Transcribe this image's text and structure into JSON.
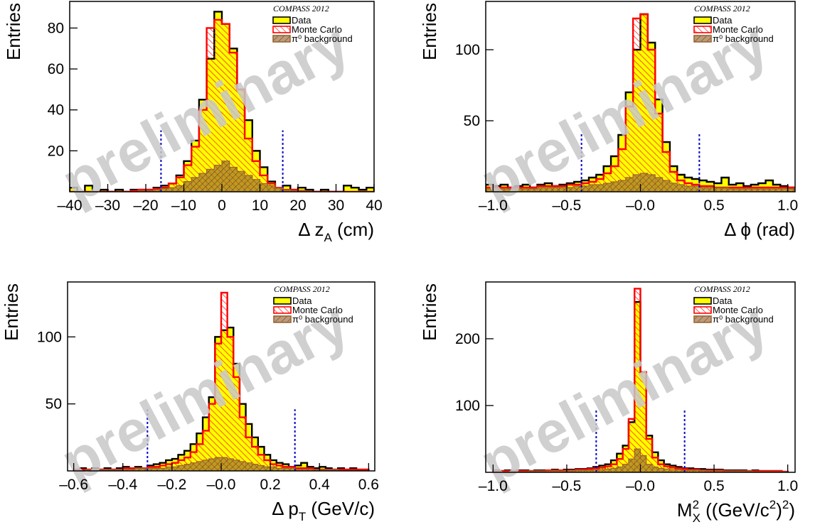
{
  "chart_data": [
    {
      "type": "histogram",
      "xlim": [
        -40,
        40
      ],
      "ylim": [
        0,
        93
      ],
      "xticks": [
        {
          "value": -40,
          "label": "–40"
        },
        {
          "value": -30,
          "label": "–30"
        },
        {
          "value": -20,
          "label": "–20"
        },
        {
          "value": -10,
          "label": "–10"
        },
        0,
        10,
        20,
        30,
        40
      ],
      "yticks": [
        20,
        40,
        60,
        80
      ],
      "ylabel": "Entries",
      "xlabel": [
        {
          "text": "Δ z"
        },
        {
          "text": "A",
          "shift": "sub"
        },
        {
          "text": " (cm)"
        }
      ],
      "legend_title": "COMPASS 2012",
      "legend": "top-right",
      "watermark": "preliminary",
      "cuts": [
        -16,
        16
      ],
      "cut_height": 30,
      "cut_color": "#0000cc",
      "bins": [
        -40,
        -38,
        -36,
        -34,
        -32,
        -30,
        -28,
        -26,
        -24,
        -22,
        -20,
        -18,
        -16,
        -14,
        -12,
        -10,
        -8,
        -6,
        -4,
        -2,
        0,
        2,
        4,
        6,
        8,
        10,
        12,
        14,
        16,
        18,
        20,
        22,
        24,
        26,
        28,
        30,
        32,
        34,
        36,
        38,
        40
      ],
      "series": [
        {
          "name": "Data",
          "color": "#ffff00",
          "values": [
            2,
            0,
            3,
            0,
            1,
            0,
            1,
            0,
            1,
            1,
            1,
            2,
            3,
            4,
            8,
            15,
            25,
            45,
            65,
            88,
            82,
            70,
            50,
            35,
            20,
            12,
            5,
            2,
            3,
            1,
            2,
            1,
            0,
            1,
            0,
            0,
            3,
            2,
            1,
            2
          ]
        },
        {
          "name": "Monte Carlo",
          "color": "#ff0000",
          "values": [
            0,
            0,
            0,
            0,
            0,
            0,
            0,
            0,
            0.5,
            1,
            1,
            1.5,
            2,
            4,
            7,
            13,
            22,
            40,
            80,
            84,
            82,
            68,
            50,
            26,
            15,
            8,
            4,
            2,
            1,
            1,
            0.5,
            0,
            0,
            0,
            0,
            0,
            0,
            0,
            0,
            0
          ]
        },
        {
          "name": "π⁰ background",
          "color": "#996633",
          "values": [
            0,
            0,
            0,
            0,
            0,
            0,
            0,
            0,
            0,
            0.5,
            0.5,
            1,
            1.5,
            2,
            3,
            5,
            7,
            9,
            11,
            13,
            15,
            12,
            10,
            8,
            6,
            4,
            3,
            2,
            1,
            0.5,
            0.5,
            0,
            0,
            0,
            0,
            0,
            0,
            0,
            0,
            0
          ]
        }
      ]
    },
    {
      "type": "histogram",
      "xlim": [
        -1.05,
        1.05
      ],
      "ylim": [
        0,
        134
      ],
      "xticks": [
        {
          "value": -1,
          "label": "–1.0"
        },
        {
          "value": -0.5,
          "label": "–0.5"
        },
        {
          "value": 0,
          "label": "–0.0"
        },
        0.5,
        {
          "value": 1,
          "label": "1.0"
        }
      ],
      "yticks": [
        50,
        100
      ],
      "ylabel": "Entries",
      "xlabel": [
        {
          "text": "Δ ϕ (rad)"
        }
      ],
      "legend_title": "COMPASS 2012",
      "legend": "top-right",
      "watermark": "preliminary",
      "cuts": [
        -0.4,
        0.4
      ],
      "cut_height": 42,
      "cut_color": "#0000cc",
      "bins": [
        -1.05,
        -1,
        -0.95,
        -0.9,
        -0.85,
        -0.8,
        -0.75,
        -0.7,
        -0.65,
        -0.6,
        -0.55,
        -0.5,
        -0.45,
        -0.4,
        -0.35,
        -0.3,
        -0.25,
        -0.2,
        -0.15,
        -0.1,
        -0.05,
        0,
        0.05,
        0.1,
        0.15,
        0.2,
        0.25,
        0.3,
        0.35,
        0.4,
        0.45,
        0.5,
        0.55,
        0.6,
        0.65,
        0.7,
        0.75,
        0.8,
        0.85,
        0.9,
        0.95,
        1,
        1.05
      ],
      "series": [
        {
          "name": "Data",
          "color": "#ffff00",
          "values": [
            5,
            4,
            5,
            3,
            4,
            5,
            3,
            5,
            6,
            4,
            5,
            6,
            7,
            8,
            10,
            12,
            18,
            25,
            40,
            70,
            100,
            125,
            105,
            65,
            35,
            18,
            12,
            10,
            9,
            8,
            7,
            6,
            10,
            5,
            6,
            4,
            5,
            6,
            8,
            5,
            4,
            3
          ]
        },
        {
          "name": "Monte Carlo",
          "color": "#ff0000",
          "values": [
            3,
            3,
            3,
            3,
            3,
            3,
            3,
            4,
            4,
            4,
            4,
            5,
            5,
            6,
            7,
            9,
            13,
            18,
            30,
            60,
            122,
            125,
            100,
            55,
            28,
            14,
            8,
            6,
            5,
            4,
            4,
            3,
            3,
            3,
            3,
            3,
            3,
            3,
            3,
            3,
            3,
            3
          ]
        },
        {
          "name": "π⁰ background",
          "color": "#996633",
          "values": [
            2,
            2,
            2,
            2,
            2,
            2,
            2,
            3,
            3,
            3,
            3,
            3,
            4,
            4,
            5,
            5,
            6,
            7,
            8,
            10,
            12,
            13,
            12,
            10,
            8,
            6,
            5,
            4,
            4,
            3,
            3,
            3,
            3,
            2,
            2,
            2,
            2,
            2,
            2,
            2,
            2,
            2
          ]
        }
      ]
    },
    {
      "type": "histogram",
      "xlim": [
        -0.625,
        0.625
      ],
      "ylim": [
        0,
        141
      ],
      "xticks": [
        {
          "value": -0.6,
          "label": "–0.6"
        },
        {
          "value": -0.4,
          "label": "–0.4"
        },
        {
          "value": -0.2,
          "label": "–0.2"
        },
        {
          "value": 0,
          "label": "–0.0"
        },
        0.2,
        0.4,
        0.6
      ],
      "yticks": [
        50,
        100
      ],
      "ylabel": "Entries",
      "xlabel": [
        {
          "text": "Δ p"
        },
        {
          "text": "T",
          "shift": "sub"
        },
        {
          "text": " (GeV/c)"
        }
      ],
      "legend_title": "COMPASS 2012",
      "legend": "top-right",
      "watermark": "preliminary",
      "cuts": [
        -0.3,
        0.3
      ],
      "cut_height": 46,
      "cut_color": "#0000cc",
      "bins": [
        -0.6,
        -0.575,
        -0.55,
        -0.525,
        -0.5,
        -0.475,
        -0.45,
        -0.425,
        -0.4,
        -0.375,
        -0.35,
        -0.325,
        -0.3,
        -0.275,
        -0.25,
        -0.225,
        -0.2,
        -0.175,
        -0.15,
        -0.125,
        -0.1,
        -0.075,
        -0.05,
        -0.025,
        0,
        0.025,
        0.05,
        0.075,
        0.1,
        0.125,
        0.15,
        0.175,
        0.2,
        0.225,
        0.25,
        0.275,
        0.3,
        0.325,
        0.35,
        0.375,
        0.4,
        0.425,
        0.45,
        0.475,
        0.5,
        0.525,
        0.55,
        0.575,
        0.6
      ],
      "series": [
        {
          "name": "Data",
          "color": "#ffff00",
          "values": [
            1,
            2,
            1,
            2,
            1,
            2,
            1,
            2,
            3,
            2,
            3,
            2,
            4,
            5,
            6,
            8,
            9,
            12,
            15,
            20,
            28,
            40,
            55,
            100,
            105,
            107,
            80,
            50,
            35,
            25,
            18,
            12,
            8,
            6,
            5,
            3,
            4,
            6,
            3,
            2,
            3,
            2,
            1,
            2,
            1,
            2,
            1,
            1
          ]
        },
        {
          "name": "Monte Carlo",
          "color": "#ff0000",
          "values": [
            1,
            1,
            1,
            1,
            1,
            1,
            1,
            1,
            2,
            2,
            2,
            2,
            3,
            3,
            4,
            5,
            6,
            8,
            10,
            14,
            20,
            30,
            50,
            95,
            133,
            100,
            70,
            40,
            25,
            18,
            12,
            8,
            5,
            4,
            3,
            3,
            2,
            2,
            2,
            1,
            1,
            1,
            1,
            1,
            1,
            1,
            1,
            1
          ]
        },
        {
          "name": "π⁰ background",
          "color": "#996633",
          "values": [
            0,
            0,
            1,
            1,
            1,
            1,
            1,
            1,
            1,
            1,
            2,
            2,
            2,
            2,
            2,
            3,
            3,
            4,
            5,
            6,
            7,
            8,
            9,
            10,
            10,
            9,
            8,
            7,
            6,
            5,
            4,
            3,
            3,
            2,
            2,
            2,
            1,
            1,
            1,
            1,
            1,
            1,
            1,
            0,
            0,
            0,
            0,
            0
          ]
        }
      ]
    },
    {
      "type": "histogram",
      "xlim": [
        -1.05,
        1.05
      ],
      "ylim": [
        0,
        285
      ],
      "xticks": [
        {
          "value": -1,
          "label": "–1.0"
        },
        {
          "value": -0.5,
          "label": "–0.5"
        },
        {
          "value": 0,
          "label": "–0.0"
        },
        0.5,
        {
          "value": 1,
          "label": "1.0"
        }
      ],
      "yticks": [
        100,
        200
      ],
      "ylabel": "Entries",
      "xlabel": [
        {
          "text": "M"
        },
        {
          "text": "2",
          "shift": "sup"
        },
        {
          "text": "X",
          "shift": "sub"
        },
        {
          "text": " ((GeV/c"
        },
        {
          "text": "2",
          "shift": "sup"
        },
        {
          "text": ")"
        },
        {
          "text": "2",
          "shift": "sup"
        },
        {
          "text": ")"
        }
      ],
      "legend_title": "COMPASS 2012",
      "legend": "top-right",
      "watermark": "preliminary",
      "cuts": [
        -0.3,
        0.3
      ],
      "cut_height": 94,
      "cut_color": "#0000cc",
      "bins": [
        -1,
        -0.96,
        -0.92,
        -0.88,
        -0.84,
        -0.8,
        -0.76,
        -0.72,
        -0.68,
        -0.64,
        -0.6,
        -0.56,
        -0.52,
        -0.48,
        -0.44,
        -0.4,
        -0.36,
        -0.32,
        -0.28,
        -0.24,
        -0.2,
        -0.16,
        -0.12,
        -0.08,
        -0.04,
        0,
        0.04,
        0.08,
        0.12,
        0.16,
        0.2,
        0.24,
        0.28,
        0.32,
        0.36,
        0.4,
        0.44,
        0.48,
        0.52,
        0.56,
        0.6,
        0.64,
        0.68,
        0.72,
        0.76,
        0.8,
        0.84,
        0.88,
        0.92,
        0.96,
        1
      ],
      "series": [
        {
          "name": "Data",
          "color": "#ffff00",
          "values": [
            3,
            2,
            3,
            2,
            3,
            3,
            2,
            3,
            3,
            3,
            4,
            3,
            4,
            4,
            5,
            5,
            6,
            8,
            10,
            12,
            18,
            28,
            40,
            75,
            255,
            150,
            55,
            30,
            18,
            12,
            10,
            8,
            6,
            6,
            5,
            5,
            4,
            4,
            4,
            3,
            3,
            3,
            3,
            2,
            3,
            2,
            2,
            2,
            2,
            1
          ]
        },
        {
          "name": "Monte Carlo",
          "color": "#ff0000",
          "values": [
            2,
            2,
            2,
            2,
            2,
            2,
            2,
            2,
            2,
            3,
            3,
            3,
            3,
            3,
            4,
            4,
            5,
            6,
            7,
            9,
            12,
            20,
            35,
            80,
            275,
            150,
            50,
            22,
            12,
            9,
            7,
            6,
            5,
            4,
            4,
            3,
            3,
            3,
            3,
            2,
            2,
            2,
            2,
            2,
            2,
            2,
            2,
            2,
            2,
            1
          ]
        },
        {
          "name": "π⁰ background",
          "color": "#996633",
          "values": [
            1,
            1,
            1,
            1,
            1,
            1,
            2,
            2,
            2,
            2,
            2,
            2,
            2,
            3,
            3,
            3,
            3,
            4,
            4,
            5,
            6,
            8,
            12,
            20,
            35,
            25,
            12,
            8,
            6,
            5,
            4,
            4,
            3,
            3,
            3,
            3,
            2,
            2,
            2,
            2,
            2,
            2,
            2,
            2,
            1,
            1,
            1,
            1,
            1,
            1
          ]
        }
      ]
    }
  ]
}
